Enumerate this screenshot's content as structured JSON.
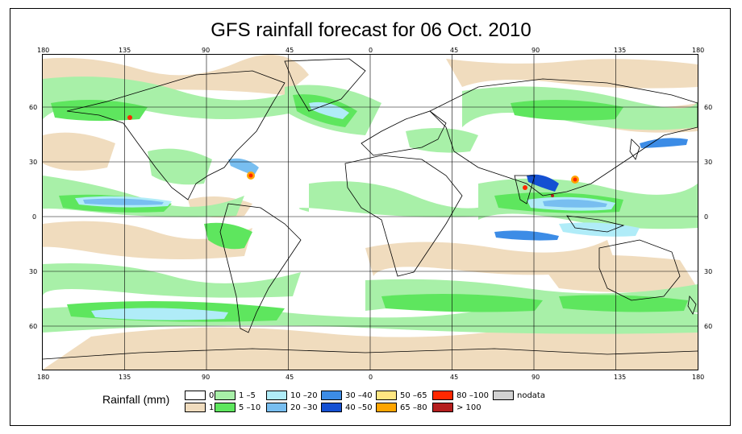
{
  "title": "GFS rainfall forecast for 06 Oct. 2010",
  "lon_labels": [
    "180",
    "135",
    "90",
    "45",
    "0",
    "45",
    "90",
    "135",
    "180"
  ],
  "lat_labels": [
    "60",
    "30",
    "0",
    "30",
    "60"
  ],
  "legend": {
    "title": "Rainfall (mm)",
    "items": [
      {
        "label": "0",
        "color": "#ffffff"
      },
      {
        "label": "1",
        "color": "#f0dcbe"
      },
      {
        "label": "1 –5",
        "color": "#a8f0a8"
      },
      {
        "label": "5 –10",
        "color": "#5ee65e"
      },
      {
        "label": "10 –20",
        "color": "#b0ecf8"
      },
      {
        "label": "20 –30",
        "color": "#78bef0"
      },
      {
        "label": "30 –40",
        "color": "#3c8ce6"
      },
      {
        "label": "40 –50",
        "color": "#1450d2"
      },
      {
        "label": "50 –65",
        "color": "#ffe682"
      },
      {
        "label": "65 –80",
        "color": "#ffa500"
      },
      {
        "label": "80 –100",
        "color": "#ff2800"
      },
      {
        "label": "> 100",
        "color": "#b41e1e"
      },
      {
        "label": "nodata",
        "color": "#d2d2d2"
      }
    ]
  }
}
